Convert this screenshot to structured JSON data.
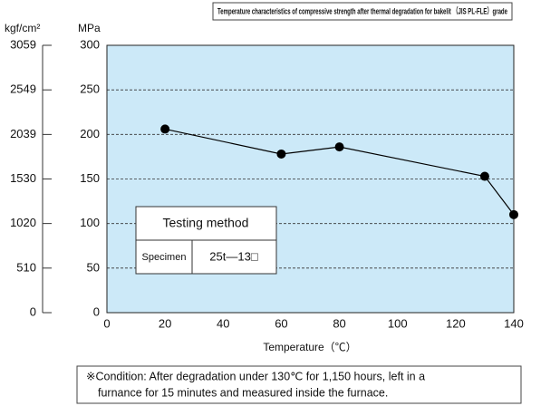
{
  "chart_data": {
    "type": "line",
    "title": "Temperature characteristics of compressive strength after thermal degradation for bakelit （JIS PL-FLE）grade",
    "y_label": "MPa",
    "y2_label": "kgf/cm²",
    "x_label": "Temperature（℃）",
    "x": [
      20,
      60,
      80,
      130,
      140
    ],
    "series": [
      {
        "color": "#000000",
        "values": [
          206,
          178,
          186,
          153,
          110
        ]
      }
    ],
    "xlim": [
      0,
      140
    ],
    "xticks": [
      0,
      20,
      40,
      60,
      80,
      100,
      120,
      140
    ],
    "ylim": [
      0,
      300
    ],
    "yticks": [
      0,
      50,
      100,
      150,
      200,
      250,
      300
    ],
    "y2lim": [
      0,
      3059
    ],
    "y2ticks": [
      0,
      510,
      1020,
      1530,
      2039,
      2549,
      3059
    ],
    "grid": true,
    "background": "#cce9f8",
    "testing_method": {
      "header": "Testing method",
      "label": "Specimen",
      "value": "25t—13□"
    },
    "note": [
      "※Condition: After degradation under 130℃ for 1,150 hours, left in a",
      "furnance for 15 minutes and measured inside the furnace."
    ]
  }
}
